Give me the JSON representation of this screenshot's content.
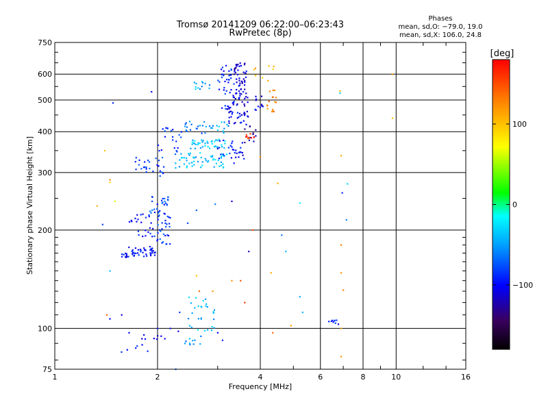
{
  "chart_data": {
    "type": "scatter",
    "title": "Tromsø 20141209 06:22:00–06:23:43",
    "subtitle": "RwPretec (8p)",
    "xlabel": "Frequency [MHz]",
    "ylabel": "Stationary phase Virtual Height [km]",
    "x_scale": "log",
    "y_scale": "log",
    "xlim": [
      1,
      16
    ],
    "ylim": [
      75,
      750
    ],
    "x_ticks": [
      {
        "v": 1,
        "label": "1"
      },
      {
        "v": 2,
        "label": "2"
      },
      {
        "v": 4,
        "label": "4"
      },
      {
        "v": 6,
        "label": "6"
      },
      {
        "v": 8,
        "label": "8"
      },
      {
        "v": 10,
        "label": "10"
      },
      {
        "v": 16,
        "label": "16"
      }
    ],
    "y_ticks": [
      {
        "v": 75,
        "label": "75"
      },
      {
        "v": 100,
        "label": "100"
      },
      {
        "v": 200,
        "label": "200"
      },
      {
        "v": 300,
        "label": "300"
      },
      {
        "v": 400,
        "label": "400"
      },
      {
        "v": 500,
        "label": "500"
      },
      {
        "v": 600,
        "label": "600"
      },
      {
        "v": 750,
        "label": "750"
      }
    ],
    "grid": true,
    "phase_info": {
      "title": "Phases",
      "line1": "mean, sd,O: −79.0, 19.0",
      "line2": "mean, sd,X: 106.0, 24.8"
    },
    "colorbar": {
      "label": "[deg]",
      "range": [
        -180,
        180
      ],
      "ticks": [
        {
          "v": 100,
          "label": "100"
        },
        {
          "v": 0,
          "label": "0"
        },
        {
          "v": -100,
          "label": "−100"
        }
      ],
      "colors": [
        "#000000",
        "#3a0060",
        "#0000ff",
        "#00a0ff",
        "#00ffff",
        "#00ff00",
        "#ffff00",
        "#ff8000",
        "#ff0000"
      ]
    },
    "clusters": [
      {
        "fmin": 1.78,
        "fmax": 2.05,
        "hmin": 92,
        "hmax": 96,
        "n": 6,
        "phase": -110
      },
      {
        "fmin": 1.62,
        "fmax": 1.98,
        "hmin": 165,
        "hmax": 178,
        "n": 40,
        "phase": -95
      },
      {
        "fmin": 1.55,
        "fmax": 1.75,
        "hmin": 165,
        "hmax": 172,
        "n": 12,
        "phase": -105
      },
      {
        "fmin": 1.95,
        "fmax": 2.18,
        "hmin": 180,
        "hmax": 230,
        "n": 35,
        "phase": -85
      },
      {
        "fmin": 1.9,
        "fmax": 2.15,
        "hmin": 225,
        "hmax": 260,
        "n": 25,
        "phase": -80
      },
      {
        "fmin": 1.65,
        "fmax": 2.0,
        "hmin": 210,
        "hmax": 225,
        "n": 14,
        "phase": -90
      },
      {
        "fmin": 1.75,
        "fmax": 1.95,
        "hmin": 190,
        "hmax": 205,
        "n": 10,
        "phase": -100
      },
      {
        "fmin": 1.72,
        "fmax": 2.1,
        "hmin": 292,
        "hmax": 335,
        "n": 26,
        "phase": -80
      },
      {
        "fmin": 2.0,
        "fmax": 2.35,
        "hmin": 340,
        "hmax": 420,
        "n": 22,
        "phase": -85
      },
      {
        "fmin": 2.25,
        "fmax": 3.2,
        "hmin": 310,
        "hmax": 345,
        "n": 55,
        "phase": -40
      },
      {
        "fmin": 2.5,
        "fmax": 3.2,
        "hmin": 355,
        "hmax": 380,
        "n": 40,
        "phase": -35
      },
      {
        "fmin": 2.4,
        "fmax": 2.75,
        "hmin": 395,
        "hmax": 430,
        "n": 16,
        "phase": -60
      },
      {
        "fmin": 2.7,
        "fmax": 3.25,
        "hmin": 395,
        "hmax": 430,
        "n": 16,
        "phase": -45
      },
      {
        "fmin": 3.0,
        "fmax": 3.6,
        "hmin": 320,
        "hmax": 380,
        "n": 30,
        "phase": -95
      },
      {
        "fmin": 3.2,
        "fmax": 3.7,
        "hmin": 420,
        "hmax": 520,
        "n": 55,
        "phase": -105
      },
      {
        "fmin": 3.35,
        "fmax": 3.65,
        "hmin": 520,
        "hmax": 650,
        "n": 50,
        "phase": -110
      },
      {
        "fmin": 3.0,
        "fmax": 3.35,
        "hmin": 470,
        "hmax": 640,
        "n": 35,
        "phase": -90
      },
      {
        "fmin": 3.6,
        "fmax": 3.95,
        "hmin": 370,
        "hmax": 420,
        "n": 12,
        "phase": -125
      },
      {
        "fmin": 3.6,
        "fmax": 3.85,
        "hmin": 380,
        "hmax": 395,
        "n": 10,
        "phase": 160
      },
      {
        "fmin": 3.85,
        "fmax": 4.1,
        "hmin": 460,
        "hmax": 520,
        "n": 12,
        "phase": -100
      },
      {
        "fmin": 4.15,
        "fmax": 4.45,
        "hmin": 460,
        "hmax": 540,
        "n": 16,
        "phase": 130
      },
      {
        "fmin": 3.8,
        "fmax": 4.4,
        "hmin": 560,
        "hmax": 640,
        "n": 8,
        "phase": 110
      },
      {
        "fmin": 2.55,
        "fmax": 2.9,
        "hmin": 540,
        "hmax": 570,
        "n": 12,
        "phase": -45
      },
      {
        "fmin": 2.45,
        "fmax": 2.95,
        "hmin": 98,
        "hmax": 125,
        "n": 30,
        "phase": -40
      },
      {
        "fmin": 2.4,
        "fmax": 2.7,
        "hmin": 88,
        "hmax": 95,
        "n": 10,
        "phase": -50
      },
      {
        "fmin": 6.3,
        "fmax": 6.85,
        "hmin": 103,
        "hmax": 106,
        "n": 8,
        "phase": -95
      },
      {
        "fmin": 1.55,
        "fmax": 1.95,
        "hmin": 84,
        "hmax": 90,
        "n": 5,
        "phase": -95
      }
    ],
    "points": [
      [
        1.45,
        285,
        130
      ],
      [
        1.45,
        280,
        90
      ],
      [
        1.4,
        350,
        100
      ],
      [
        1.48,
        490,
        -90
      ],
      [
        1.92,
        530,
        -100
      ],
      [
        1.33,
        237,
        110
      ],
      [
        1.38,
        208,
        -80
      ],
      [
        1.5,
        245,
        60
      ],
      [
        1.45,
        150,
        -40
      ],
      [
        1.42,
        110,
        140
      ],
      [
        1.45,
        107,
        -100
      ],
      [
        1.57,
        110,
        -110
      ],
      [
        2.32,
        112,
        -80
      ],
      [
        2.0,
        100,
        -90
      ],
      [
        2.26,
        75,
        -70
      ],
      [
        3.5,
        140,
        150
      ],
      [
        3.6,
        120,
        160
      ],
      [
        3.7,
        172,
        -120
      ],
      [
        3.8,
        200,
        150
      ],
      [
        4.0,
        335,
        130
      ],
      [
        4.3,
        148,
        110
      ],
      [
        4.35,
        97,
        140
      ],
      [
        4.5,
        278,
        110
      ],
      [
        4.62,
        193,
        -60
      ],
      [
        4.75,
        172,
        -40
      ],
      [
        4.92,
        102,
        120
      ],
      [
        5.22,
        125,
        -50
      ],
      [
        5.22,
        242,
        -20
      ],
      [
        5.32,
        112,
        -40
      ],
      [
        6.85,
        533,
        100
      ],
      [
        6.85,
        525,
        -30
      ],
      [
        6.9,
        338,
        110
      ],
      [
        6.9,
        180,
        130
      ],
      [
        6.9,
        148,
        120
      ],
      [
        6.9,
        82,
        120
      ],
      [
        7.2,
        277,
        -30
      ],
      [
        7.15,
        215,
        -60
      ],
      [
        6.9,
        100,
        110
      ],
      [
        7.0,
        131,
        130
      ],
      [
        6.95,
        260,
        -90
      ],
      [
        9.75,
        600,
        120
      ],
      [
        9.75,
        440,
        100
      ],
      [
        6.35,
        105,
        -90
      ],
      [
        3.0,
        355,
        -110
      ],
      [
        3.0,
        97,
        -100
      ],
      [
        3.3,
        245,
        -110
      ],
      [
        2.95,
        240,
        -60
      ],
      [
        2.6,
        230,
        -70
      ],
      [
        2.45,
        210,
        -80
      ],
      [
        1.63,
        86,
        -100
      ],
      [
        1.65,
        97,
        -100
      ],
      [
        1.8,
        93,
        -110
      ],
      [
        2.18,
        100,
        -90
      ],
      [
        2.1,
        93,
        -100
      ],
      [
        2.3,
        98,
        -110
      ],
      [
        3.3,
        140,
        120
      ],
      [
        3.1,
        92,
        -90
      ],
      [
        2.9,
        130,
        120
      ],
      [
        2.6,
        145,
        100
      ],
      [
        2.65,
        130,
        140
      ]
    ]
  }
}
